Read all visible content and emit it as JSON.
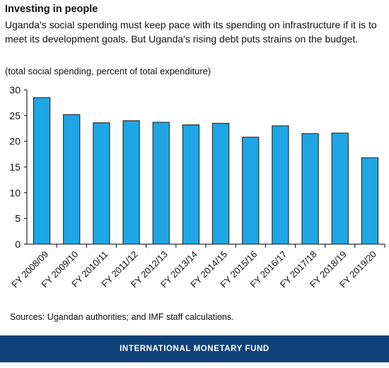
{
  "header": {
    "title": "Investing in people",
    "subtitle": "Uganda's social spending must keep pace with its spending on infrastructure if it is to meet its development goals. But Uganda's rising debt puts strains on the budget.",
    "unit_note": "(total social spending, percent of total expenditure)"
  },
  "chart_data": {
    "type": "bar",
    "categories": [
      "FY 2008/09",
      "FY 2009/10",
      "FY 2010/11",
      "FY 2011/12",
      "FY 2012/13",
      "FY 2013/14",
      "FY 2014/15",
      "FY 2015/16",
      "FY 2016/17",
      "FY 2017/18",
      "FY 2018/19",
      "FY 2019/20"
    ],
    "values": [
      28.5,
      25.2,
      23.6,
      24.0,
      23.7,
      23.2,
      23.5,
      20.8,
      23.0,
      21.5,
      21.6,
      16.8
    ],
    "ylim": [
      0,
      30
    ],
    "yticks": [
      0,
      5,
      10,
      15,
      20,
      25,
      30
    ],
    "bar_color": "#1ea7e4",
    "grid": false
  },
  "footer": {
    "source": "Sources: Ugandan authorities; and IMF staff calculations.",
    "org": "INTERNATIONAL MONETARY FUND",
    "bar_color": "#10427a"
  }
}
